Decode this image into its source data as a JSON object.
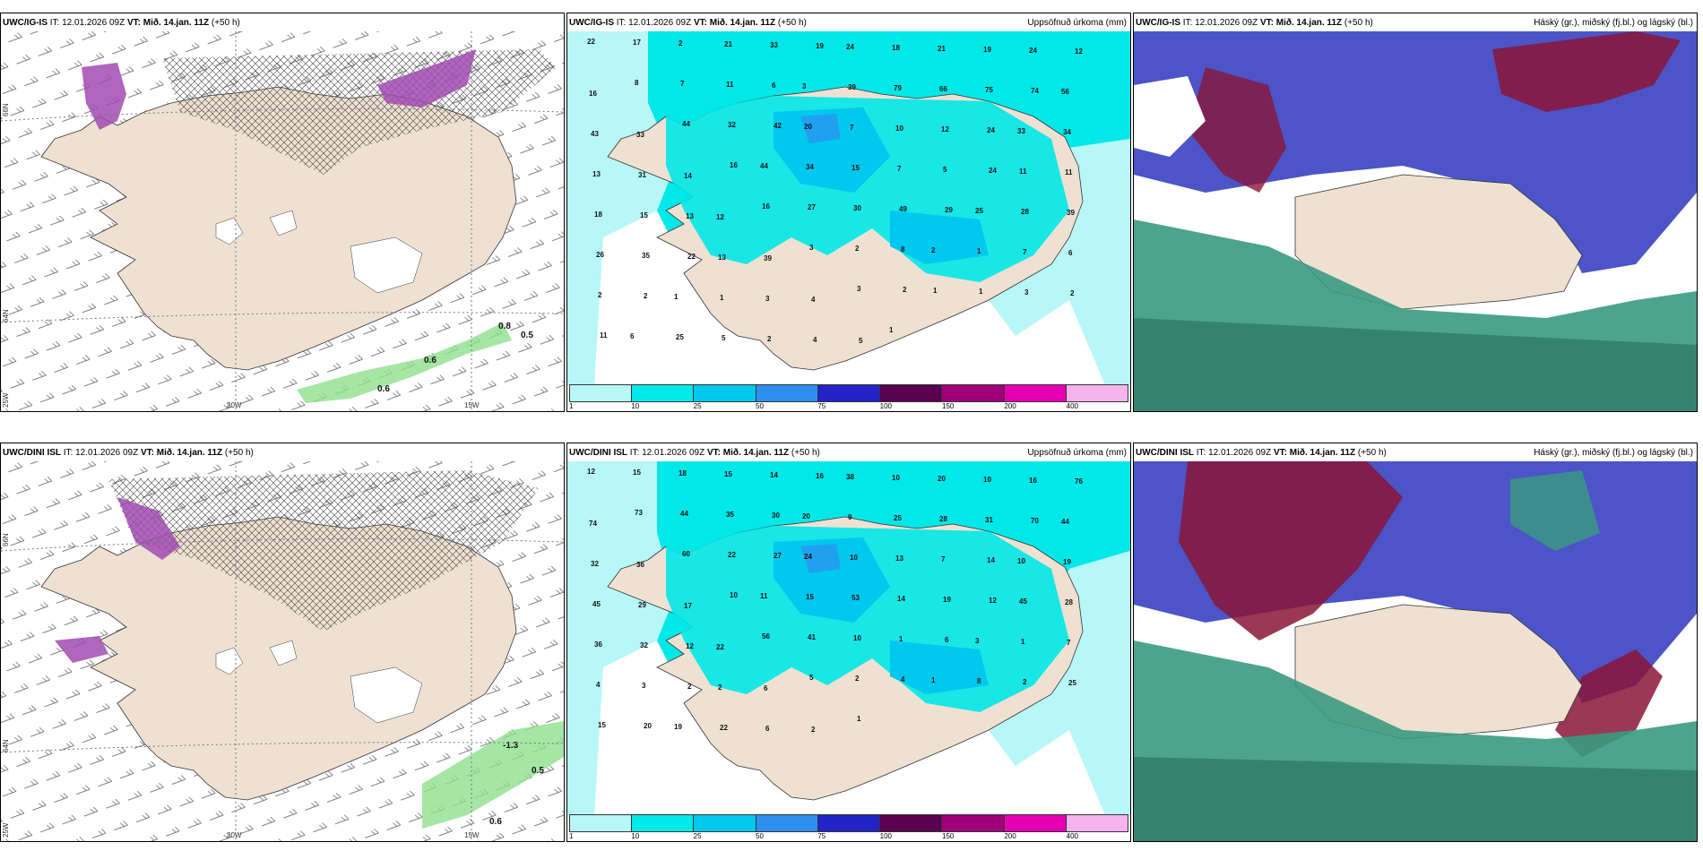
{
  "rows": [
    {
      "model": "UWC/IG-IS",
      "issue": "IT: 12.01.2026 09Z",
      "vt_label": "VT:",
      "vt": "Mið. 14.jan. 11Z",
      "lead": "(+50 h)",
      "wind_labels": [
        "0.8",
        "0.5",
        "0.6",
        "0.6"
      ],
      "precip_labels": [
        "22",
        "17",
        "2",
        "21",
        "33",
        "19",
        "24",
        "18",
        "21",
        "19",
        "24",
        "12",
        "16",
        "8",
        "7",
        "11",
        "6",
        "3",
        "39",
        "79",
        "66",
        "75",
        "74",
        "56",
        "43",
        "33",
        "44",
        "32",
        "42",
        "20",
        "7",
        "10",
        "12",
        "24",
        "33",
        "34",
        "13",
        "31",
        "14",
        "16",
        "44",
        "34",
        "15",
        "7",
        "5",
        "24",
        "11",
        "11",
        "18",
        "15",
        "13",
        "12",
        "16",
        "27",
        "30",
        "49",
        "29",
        "25",
        "28",
        "39",
        "26",
        "35",
        "22",
        "13",
        "39",
        "3",
        "2",
        "8",
        "2",
        "1",
        "7",
        "6",
        "2",
        "2",
        "1",
        "1",
        "3",
        "4",
        "3",
        "2",
        "1",
        "1",
        "3",
        "2",
        "11",
        "6",
        "25",
        "5",
        "2",
        "4",
        "5",
        "1"
      ]
    },
    {
      "model": "UWC/DINI ISL",
      "issue": "IT: 12.01.2026 09Z",
      "vt_label": "VT:",
      "vt": "Mið. 14.jan. 11Z",
      "lead": "(+50 h)",
      "wind_labels": [
        "-1.3",
        "0.5",
        "0.6"
      ],
      "precip_labels": [
        "12",
        "15",
        "18",
        "15",
        "14",
        "16",
        "38",
        "10",
        "20",
        "10",
        "16",
        "76",
        "74",
        "73",
        "44",
        "35",
        "30",
        "20",
        "9",
        "25",
        "28",
        "31",
        "70",
        "44",
        "32",
        "36",
        "60",
        "22",
        "27",
        "24",
        "10",
        "13",
        "7",
        "14",
        "10",
        "19",
        "45",
        "29",
        "17",
        "10",
        "11",
        "15",
        "53",
        "14",
        "19",
        "12",
        "45",
        "28",
        "36",
        "32",
        "12",
        "22",
        "56",
        "41",
        "10",
        "1",
        "6",
        "3",
        "1",
        "7",
        "4",
        "3",
        "2",
        "2",
        "6",
        "5",
        "2",
        "4",
        "1",
        "8",
        "2",
        "25",
        "15",
        "20",
        "19",
        "22",
        "6",
        "2",
        "1"
      ]
    }
  ],
  "precip_title": "Uppsöfnuð úrkoma (mm)",
  "cloud_title": "Háský (gr.), miðský (fj.bl.) og lágský (bl.)",
  "legend": {
    "ticks": [
      "1",
      "10",
      "25",
      "50",
      "75",
      "100",
      "150",
      "200",
      "400"
    ],
    "colors": [
      "#b7f7f7",
      "#00eaea",
      "#00c8ee",
      "#2f8ff0",
      "#2323c8",
      "#5a0050",
      "#a0007a",
      "#e600b4",
      "#f5b4ee"
    ]
  },
  "axes": {
    "lat_top": "66N",
    "lat_mid": "64N",
    "lon_left": "25W",
    "lon_20": "20W",
    "lon_15": "15W",
    "lat_right_top": "65N",
    "lat_right_mid": "64N"
  },
  "colors": {
    "land": "#efe1d2",
    "sea_precip": "#00e8e8",
    "cloud_high": "#8a1538",
    "cloud_mid": "#4c54c8",
    "cloud_low": "#3a9a80"
  }
}
